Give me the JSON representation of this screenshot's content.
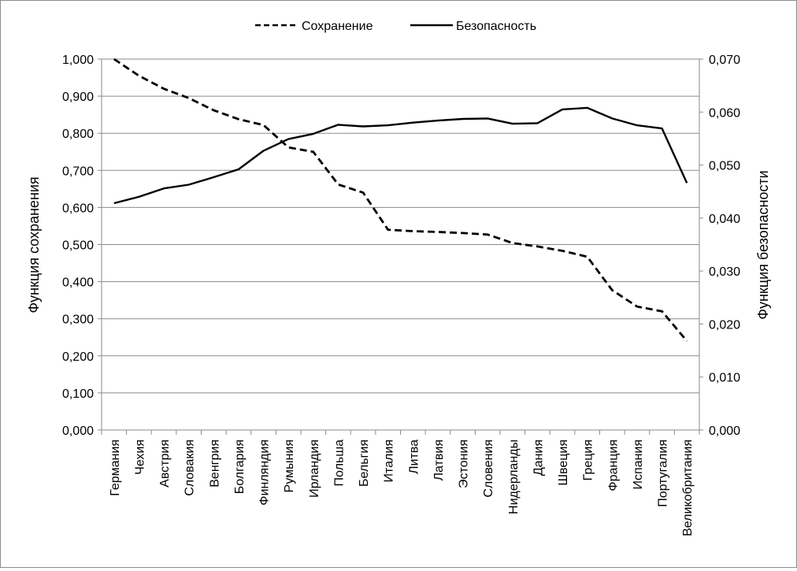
{
  "chart_data": {
    "type": "line",
    "title": "",
    "legend_position": "top",
    "grid": true,
    "categories": [
      "Германия",
      "Чехия",
      "Австрия",
      "Словакия",
      "Венгрия",
      "Болгария",
      "Финляндия",
      "Румыния",
      "Ирландия",
      "Польша",
      "Бельгия",
      "Италия",
      "Литва",
      "Латвия",
      "Эстония",
      "Словения",
      "Нидерланды",
      "Дания",
      "Швеция",
      "Греция",
      "Франция",
      "Испания",
      "Португалия",
      "Великобритания"
    ],
    "y_left": {
      "label": "Функция сохранения",
      "range": [
        0,
        1.0
      ],
      "ticks": [
        "0,000",
        "0,100",
        "0,200",
        "0,300",
        "0,400",
        "0,500",
        "0,600",
        "0,700",
        "0,800",
        "0,900",
        "1,000"
      ]
    },
    "y_right": {
      "label": "Функция безопасности",
      "range": [
        0,
        0.07
      ],
      "ticks": [
        "0,000",
        "0,010",
        "0,020",
        "0,030",
        "0,040",
        "0,050",
        "0,060",
        "0,070"
      ]
    },
    "series": [
      {
        "name": "Сохранение",
        "axis": "left",
        "style": "dashed",
        "color": "#000000",
        "values": [
          1.0,
          0.955,
          0.92,
          0.895,
          0.862,
          0.838,
          0.822,
          0.762,
          0.75,
          0.662,
          0.64,
          0.54,
          0.536,
          0.534,
          0.531,
          0.527,
          0.504,
          0.495,
          0.483,
          0.467,
          0.377,
          0.333,
          0.32,
          0.24
        ]
      },
      {
        "name": "Безопасность",
        "axis": "right",
        "style": "solid",
        "color": "#000000",
        "values": [
          0.0428,
          0.044,
          0.0456,
          0.0463,
          0.0477,
          0.0492,
          0.0527,
          0.0549,
          0.0559,
          0.0576,
          0.0573,
          0.0575,
          0.058,
          0.0584,
          0.0587,
          0.0588,
          0.0578,
          0.0579,
          0.0605,
          0.0608,
          0.0588,
          0.0575,
          0.0569,
          0.0466
        ]
      }
    ]
  }
}
